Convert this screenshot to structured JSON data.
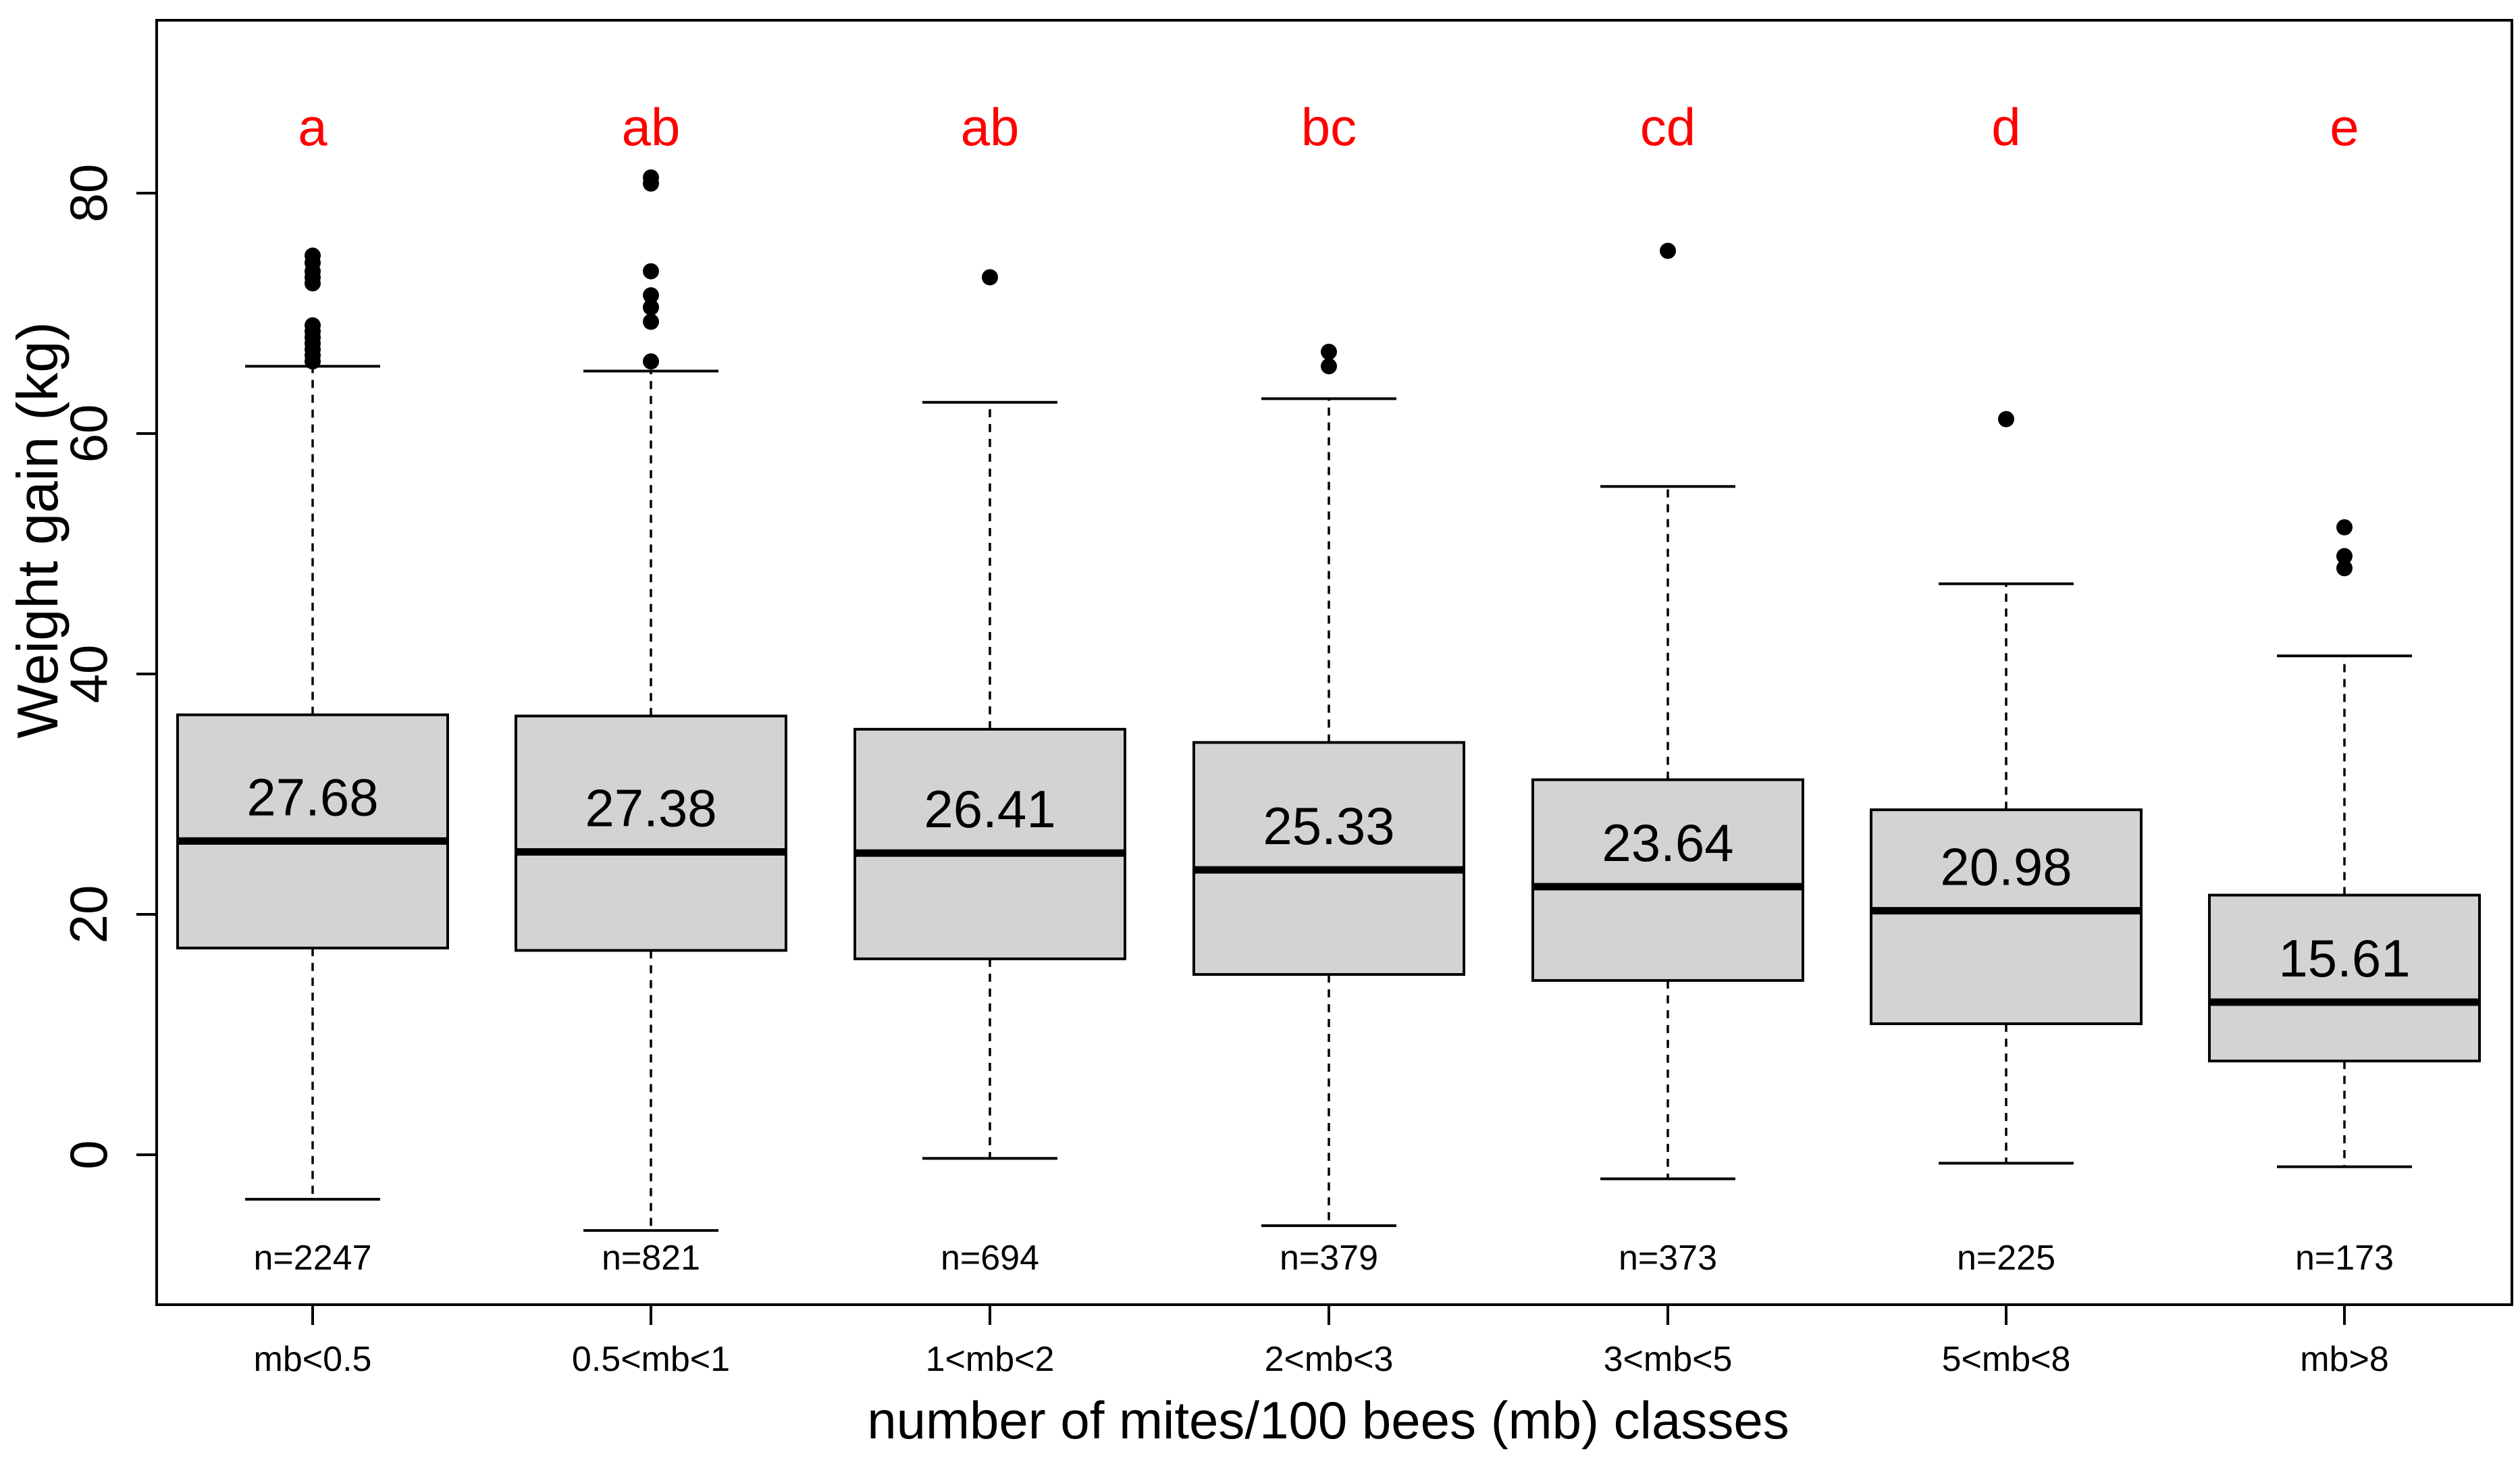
{
  "chart_data": {
    "type": "boxplot",
    "title": "",
    "xlabel": "number of mites/100 bees (mb) classes",
    "ylabel": "Weight gain (kg)",
    "ylim": [
      -13,
      93
    ],
    "yticks": [
      0,
      20,
      40,
      60,
      80
    ],
    "grid": false,
    "colors": {
      "box_fill": "#d3d3d3",
      "stroke": "#000000",
      "letters": "#ff0000"
    },
    "categories": [
      "mb<0.5",
      "0.5<mb<1",
      "1<mb<2",
      "2<mb<3",
      "3<mb<5",
      "5<mb<8",
      "mb>8"
    ],
    "boxes": [
      {
        "label": "mb<0.5",
        "whisker_low": -3.7,
        "q1": 17.2,
        "median": 26.1,
        "q3": 36.6,
        "whisker_high": 65.6,
        "mean_label": "27.68",
        "n_label": "n=2247",
        "letter": "a",
        "outliers": [
          66.0,
          66.5,
          67.0,
          67.5,
          68.0,
          68.5,
          69.0,
          72.5,
          73.0,
          73.5,
          74.2,
          74.8
        ]
      },
      {
        "label": "0.5<mb<1",
        "whisker_low": -6.3,
        "q1": 17.0,
        "median": 25.2,
        "q3": 36.5,
        "whisker_high": 65.2,
        "mean_label": "27.38",
        "n_label": "n=821",
        "letter": "ab",
        "outliers": [
          66.0,
          69.3,
          70.5,
          71.5,
          73.5,
          80.8,
          81.3
        ]
      },
      {
        "label": "1<mb<2",
        "whisker_low": -0.3,
        "q1": 16.3,
        "median": 25.1,
        "q3": 35.4,
        "whisker_high": 62.6,
        "mean_label": "26.41",
        "n_label": "n=694",
        "letter": "ab",
        "outliers": [
          73.0
        ]
      },
      {
        "label": "2<mb<3",
        "whisker_low": -5.9,
        "q1": 15.0,
        "median": 23.7,
        "q3": 34.3,
        "whisker_high": 62.9,
        "mean_label": "25.33",
        "n_label": "n=379",
        "letter": "bc",
        "outliers": [
          65.6,
          66.8
        ]
      },
      {
        "label": "3<mb<5",
        "whisker_low": -2.0,
        "q1": 14.5,
        "median": 22.3,
        "q3": 31.2,
        "whisker_high": 55.6,
        "mean_label": "23.64",
        "n_label": "n=373",
        "letter": "cd",
        "outliers": [
          75.2
        ]
      },
      {
        "label": "5<mb<8",
        "whisker_low": -0.7,
        "q1": 10.9,
        "median": 20.3,
        "q3": 28.7,
        "whisker_high": 47.5,
        "mean_label": "20.98",
        "n_label": "n=225",
        "letter": "d",
        "outliers": [
          61.2
        ]
      },
      {
        "label": "mb>8",
        "whisker_low": -1.0,
        "q1": 7.8,
        "median": 12.7,
        "q3": 21.6,
        "whisker_high": 41.5,
        "mean_label": "15.61",
        "n_label": "n=173",
        "letter": "e",
        "outliers": [
          48.8,
          49.8,
          52.2
        ]
      }
    ]
  }
}
